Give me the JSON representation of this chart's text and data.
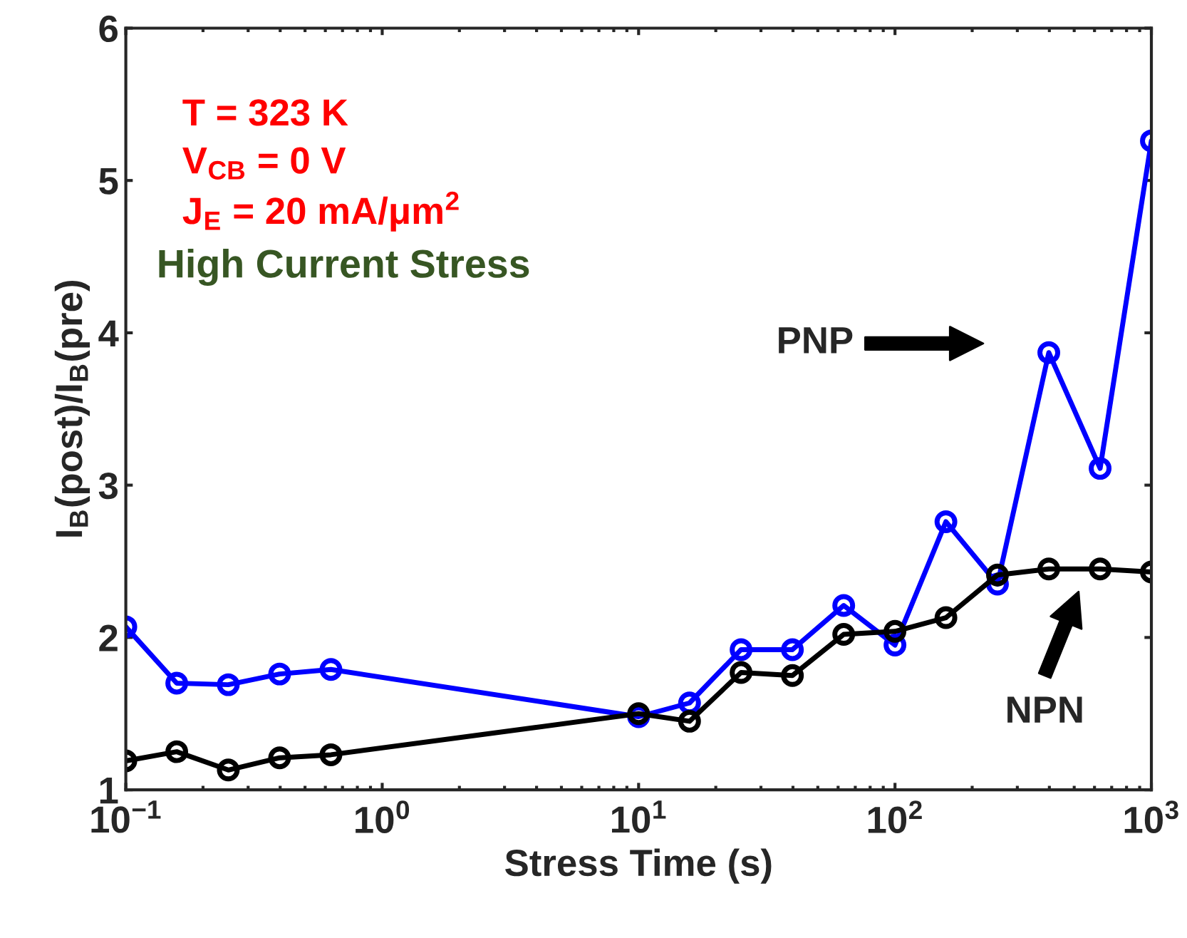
{
  "chart_data": {
    "type": "line",
    "xlabel": "Stress Time (s)",
    "ylabel": "I$_{B}$(post)/I$_{B}$(pre)",
    "log": "x",
    "grid": false,
    "legend": false,
    "marker": "circle",
    "line_style": "solid",
    "xlim": [
      0.1,
      1000
    ],
    "xticks": [
      {
        "value": 0.1,
        "label": "10$^{−1}$"
      },
      {
        "value": 1,
        "label": "10$^{0}$"
      },
      {
        "value": 10,
        "label": "10$^{1}$"
      },
      {
        "value": 100,
        "label": "10$^{2}$"
      },
      {
        "value": 1000,
        "label": "10$^{3}$"
      }
    ],
    "ylim": [
      1,
      6
    ],
    "yticks": [
      1,
      2,
      3,
      4,
      5,
      6
    ],
    "series": [
      {
        "color": "#0000ff",
        "x": [
          0.1,
          0.158,
          0.251,
          0.398,
          0.631,
          10,
          15.8,
          25.1,
          39.8,
          63.1,
          100,
          158,
          251,
          398,
          631,
          1000
        ],
        "values": [
          2.07,
          1.7,
          1.69,
          1.76,
          1.79,
          1.48,
          1.57,
          1.92,
          1.92,
          2.21,
          1.95,
          2.76,
          2.35,
          3.87,
          3.11,
          5.26
        ]
      },
      {
        "color": "#000000",
        "x": [
          0.1,
          0.158,
          0.251,
          0.398,
          0.631,
          10,
          15.8,
          25.1,
          39.8,
          63.1,
          100,
          158,
          251,
          398,
          631,
          1000
        ],
        "values": [
          1.19,
          1.25,
          1.13,
          1.21,
          1.23,
          1.5,
          1.45,
          1.77,
          1.75,
          2.02,
          2.04,
          2.13,
          2.41,
          2.45,
          2.45,
          2.43
        ]
      }
    ],
    "annotations": [
      "T = 323 K",
      "V$_{CB}$ = 0 V",
      "J$_{E}$ = 20 mA/μm$^{2}$",
      "High Current Stress",
      "PNP",
      "NPN"
    ]
  }
}
